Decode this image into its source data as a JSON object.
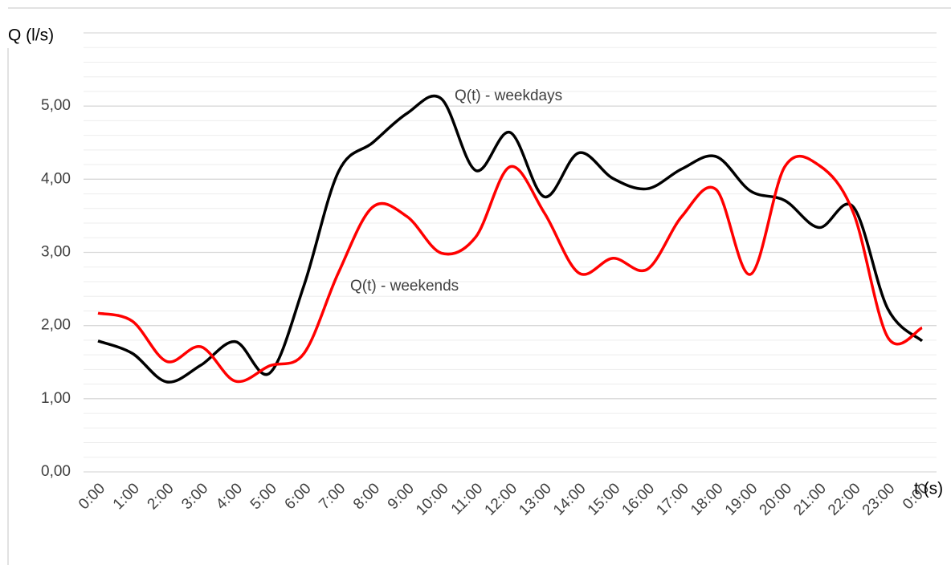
{
  "chart_data": {
    "type": "line",
    "y_label": "Q (l/s)",
    "x_label": "t (s)",
    "categories": [
      "0:00",
      "1:00",
      "2:00",
      "3:00",
      "4:00",
      "5:00",
      "6:00",
      "7:00",
      "8:00",
      "9:00",
      "10:00",
      "11:00",
      "12:00",
      "13:00",
      "14:00",
      "15:00",
      "16:00",
      "17:00",
      "18:00",
      "19:00",
      "20:00",
      "21:00",
      "22:00",
      "23:00",
      "0:00"
    ],
    "series": [
      {
        "name": "Q(t) - weekdays",
        "color": "#000000",
        "values": [
          1.79,
          1.62,
          1.23,
          1.46,
          1.78,
          1.35,
          2.55,
          4.1,
          4.5,
          4.9,
          5.1,
          4.12,
          4.64,
          3.76,
          4.36,
          4.01,
          3.87,
          4.14,
          4.31,
          3.84,
          3.71,
          3.34,
          3.62,
          2.23,
          1.79
        ]
      },
      {
        "name": "Q(t) - weekends",
        "color": "#ff0000",
        "values": [
          2.17,
          2.06,
          1.51,
          1.71,
          1.24,
          1.45,
          1.62,
          2.72,
          3.62,
          3.49,
          2.99,
          3.21,
          4.17,
          3.54,
          2.72,
          2.92,
          2.77,
          3.49,
          3.86,
          2.7,
          4.17,
          4.19,
          3.54,
          1.84,
          1.97
        ]
      }
    ],
    "ylim": [
      0,
      6
    ],
    "yticks": [
      {
        "value": 0,
        "label": "0,00"
      },
      {
        "value": 1,
        "label": "1,00"
      },
      {
        "value": 2,
        "label": "2,00"
      },
      {
        "value": 3,
        "label": "3,00"
      },
      {
        "value": 4,
        "label": "4,00"
      },
      {
        "value": 5,
        "label": "5,00"
      }
    ],
    "grid": true,
    "minor_grid": 0.2,
    "smooth": true
  }
}
